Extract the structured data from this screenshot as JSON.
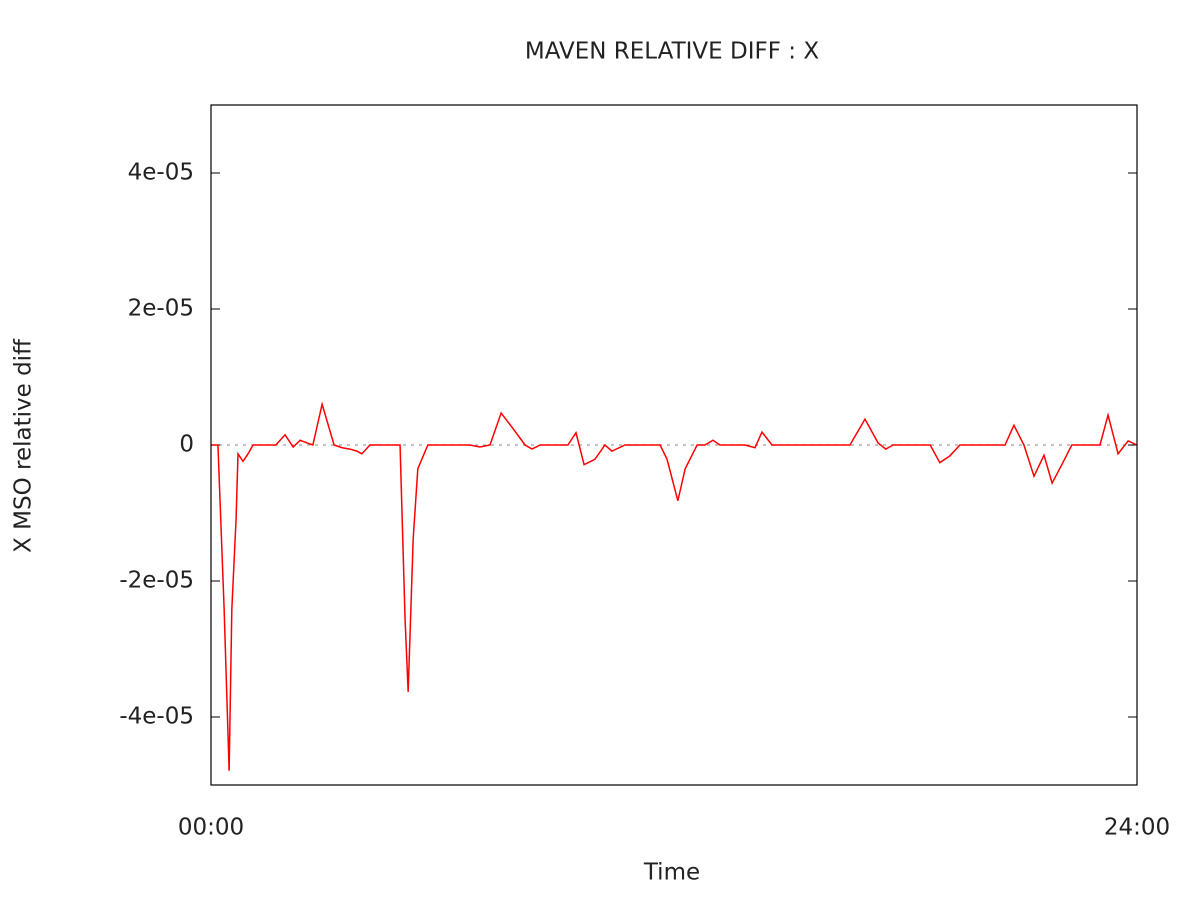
{
  "chart_data": {
    "type": "line",
    "title": "MAVEN RELATIVE DIFF : X",
    "xlabel": "Time",
    "ylabel": "X MSO relative diff",
    "color": "#ff0000",
    "x": [
      0,
      0.18,
      0.34,
      0.47,
      0.54,
      0.65,
      0.7,
      0.83,
      0.96,
      1.09,
      1.68,
      1.92,
      2.13,
      2.31,
      2.49,
      2.64,
      2.88,
      3.19,
      3.4,
      3.6,
      3.78,
      3.91,
      4.12,
      4.9,
      5.03,
      5.11,
      5.24,
      5.36,
      5.62,
      6.71,
      6.97,
      7.23,
      7.52,
      7.83,
      8.14,
      8.32,
      8.53,
      9.25,
      9.46,
      9.67,
      9.95,
      10.21,
      10.39,
      10.73,
      11.64,
      11.82,
      12.1,
      12.29,
      12.6,
      12.8,
      13.01,
      13.19,
      13.84,
      14.1,
      14.28,
      14.54,
      16.56,
      16.95,
      17.29,
      17.49,
      17.68,
      18.19,
      18.64,
      18.89,
      19.15,
      19.41,
      20.58,
      20.81,
      21.07,
      21.33,
      21.59,
      21.8,
      22.06,
      22.31,
      23.04,
      23.25,
      23.51,
      23.77,
      24.0
    ],
    "values": [
      0,
      0,
      -2.41e-05,
      -4.79e-05,
      -2.41e-05,
      -1.09e-05,
      -1.3e-06,
      -2.4e-06,
      -1.3e-06,
      0,
      0,
      1.5e-06,
      -3e-07,
      7e-07,
      3e-07,
      0,
      6e-06,
      0,
      -4e-07,
      -6e-07,
      -9e-07,
      -1.3e-06,
      0,
      0,
      -2.56e-05,
      -3.63e-05,
      -1.38e-05,
      -3.5e-06,
      0,
      0,
      -3e-07,
      0,
      4.7e-06,
      2.4e-06,
      0,
      -6e-07,
      0,
      0,
      1.8e-06,
      -2.9e-06,
      -2.1e-06,
      0,
      -9e-07,
      0,
      0,
      -2.1e-06,
      -8.2e-06,
      -3.5e-06,
      0,
      0,
      7e-07,
      0,
      0,
      -4e-07,
      1.9e-06,
      0,
      0,
      3.8e-06,
      3e-07,
      -6e-07,
      0,
      0,
      0,
      -2.6e-06,
      -1.6e-06,
      0,
      0,
      2.9e-06,
      0,
      -4.6e-06,
      -1.5e-06,
      -5.6e-06,
      -2.8e-06,
      0,
      0,
      4.4e-06,
      -1.3e-06,
      6e-07,
      0
    ],
    "xlim": [
      0,
      24
    ],
    "xticks": [
      {
        "value": 0,
        "label": "00:00"
      },
      {
        "value": 24,
        "label": "24:00"
      }
    ],
    "ylim": [
      -5e-05,
      5e-05
    ],
    "yticks": [
      {
        "value": -4e-05,
        "label": "-4e-05"
      },
      {
        "value": -2e-05,
        "label": "-2e-05"
      },
      0,
      {
        "value": 2e-05,
        "label": "2e-05"
      },
      {
        "value": 4e-05,
        "label": "4e-05"
      }
    ]
  }
}
